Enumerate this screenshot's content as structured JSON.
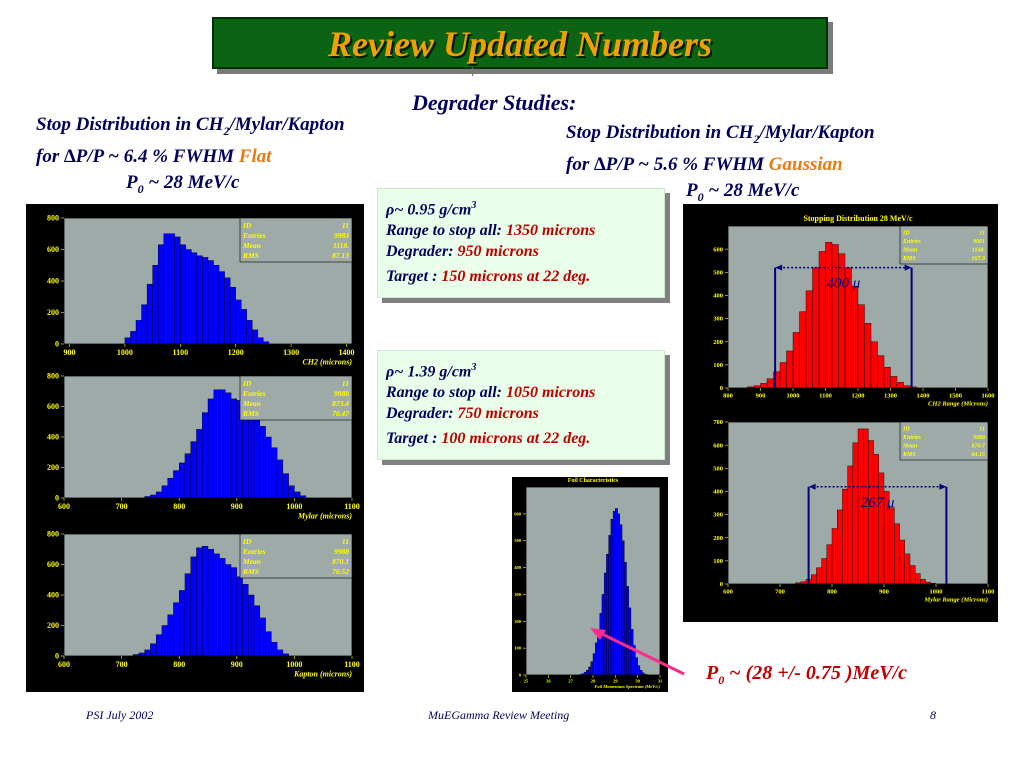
{
  "title": "Review Updated Numbers",
  "slide_glyph": "4",
  "subtitle": "Degrader Studies:",
  "left_caption": {
    "line1_prefix": "Stop Distribution in CH",
    "line1_sub": "2",
    "line1_suffix": "/Mylar/Kapton",
    "line2_prefix": "for  ",
    "line2_delta": "∆",
    "line2_mid": "P/P ~ 6.4 % FWHM",
    "line2_shape": "Flat",
    "line3_p": "P",
    "line3_sub": "0",
    "line3_suffix": " ~ 28 MeV/c"
  },
  "right_caption": {
    "line1_prefix": "Stop Distribution in CH",
    "line1_sub": "2",
    "line1_suffix": "/Mylar/Kapton",
    "line2_prefix": "for  ",
    "line2_delta": "∆",
    "line2_mid": "P/P ~ 5.6 % FWHM",
    "line2_shape": "Gaussian",
    "line3_p": "P",
    "line3_sub": "0",
    "line3_suffix": " ~ 28 MeV/c"
  },
  "box1": {
    "rho_symbol": "ρ",
    "density": "~ 0.95 g/cm",
    "density_sup": "3",
    "range_label": "Range to stop all:",
    "range_value": "1350 microns",
    "degrader_label": "Degrader:",
    "degrader_value": "950  microns",
    "target_label": "Target :",
    "target_value": "150 microns at 22 deg."
  },
  "box2": {
    "rho_symbol": "ρ",
    "density": "~ 1.39 g/cm",
    "density_sup": "3",
    "range_label": "Range to stop all:",
    "range_value": "1050 microns",
    "degrader_label": "Degrader:",
    "degrader_value": "750  microns",
    "target_label": "Target :",
    "target_value": "100 microns at 22 deg."
  },
  "momentum_label": {
    "p": "P",
    "sub": "0",
    "rest": " ~ (28 +/- 0.75 )MeV/c"
  },
  "footer": {
    "left": "PSI July 2002",
    "center": "MuEGamma Review Meeting",
    "right": "8"
  },
  "colors": {
    "title_bg": "#0a6414",
    "title_text": "#f0a000",
    "histo_blue": "#0000ff",
    "histo_red": "#ff0000",
    "plot_bg": "#9eaaa8",
    "axis_text": "#ffff00",
    "info_box_bg": "#eaffea",
    "arrow_magenta": "#ff2c8c"
  },
  "chart_data": [
    {
      "type": "bar",
      "stat_box": {
        "ID": "11",
        "Entries": "9983",
        "Mean": "1118.",
        "RMS": "87.13"
      },
      "xlabel": "CH2   (microns)",
      "xlim": [
        890,
        1410
      ],
      "ylim": [
        0,
        800
      ],
      "x_ticks": [
        "900",
        "1000",
        "1100",
        "1200",
        "1300",
        "1400"
      ],
      "y_ticks": [
        "0",
        "200",
        "400",
        "600",
        "800"
      ],
      "bin_width": 10,
      "x_start": 900,
      "values": [
        0,
        0,
        0,
        0,
        0,
        0,
        0,
        0,
        0,
        0,
        40,
        80,
        150,
        250,
        380,
        500,
        630,
        700,
        700,
        680,
        630,
        600,
        580,
        560,
        550,
        530,
        500,
        460,
        420,
        360,
        280,
        220,
        150,
        90,
        40,
        15
      ]
    },
    {
      "type": "bar",
      "stat_box": {
        "ID": "11",
        "Entries": "9988",
        "Mean": "873.4",
        "RMS": "70.47"
      },
      "xlabel": "Mylar   (microns)",
      "xlim": [
        600,
        1100
      ],
      "ylim": [
        0,
        800
      ],
      "x_ticks": [
        "600",
        "700",
        "800",
        "900",
        "1000",
        "1100"
      ],
      "y_ticks": [
        "0",
        "200",
        "400",
        "600",
        "800"
      ],
      "bin_width": 10,
      "x_start": 600,
      "values": [
        0,
        0,
        0,
        0,
        0,
        0,
        0,
        0,
        0,
        0,
        0,
        0,
        0,
        0,
        10,
        20,
        40,
        80,
        130,
        180,
        230,
        290,
        370,
        450,
        560,
        650,
        710,
        710,
        690,
        650,
        640,
        600,
        580,
        520,
        470,
        400,
        330,
        250,
        160,
        80,
        40,
        15,
        0,
        0,
        0,
        0,
        0,
        0,
        0,
        0
      ]
    },
    {
      "type": "bar",
      "stat_box": {
        "ID": "11",
        "Entries": "9988",
        "Mean": "870.1",
        "RMS": "70.52"
      },
      "xlabel": "Kapton   (microns)",
      "xlim": [
        600,
        1100
      ],
      "ylim": [
        0,
        800
      ],
      "x_ticks": [
        "600",
        "700",
        "800",
        "900",
        "1000",
        "1100"
      ],
      "y_ticks": [
        "0",
        "200",
        "400",
        "600",
        "800"
      ],
      "bin_width": 10,
      "x_start": 600,
      "values": [
        0,
        0,
        0,
        0,
        0,
        0,
        0,
        0,
        0,
        0,
        0,
        0,
        10,
        20,
        40,
        80,
        140,
        200,
        270,
        350,
        430,
        540,
        650,
        710,
        720,
        700,
        670,
        640,
        600,
        580,
        520,
        470,
        400,
        330,
        250,
        160,
        90,
        40,
        15,
        0,
        0,
        0,
        0,
        0,
        0,
        0,
        0,
        0,
        0,
        0
      ]
    },
    {
      "type": "bar",
      "title": "Stopping Distribution 28 MeV/c",
      "stat_box": {
        "ID": "11",
        "Entries": "9981",
        "Mean": "1148.",
        "RMS": "167.9"
      },
      "xlabel": "CH2 Range  (Microns)",
      "xlim": [
        800,
        1600
      ],
      "ylim": [
        0,
        700
      ],
      "x_ticks": [
        "800",
        "900",
        "1000",
        "1100",
        "1200",
        "1300",
        "1400",
        "1500",
        "1600"
      ],
      "y_ticks": [
        "0",
        "100",
        "200",
        "300",
        "400",
        "500",
        "600"
      ],
      "bin_width": 20,
      "x_start": 800,
      "values": [
        0,
        0,
        0,
        5,
        10,
        20,
        40,
        70,
        110,
        160,
        240,
        330,
        420,
        520,
        590,
        630,
        620,
        580,
        520,
        440,
        360,
        280,
        200,
        140,
        90,
        50,
        25,
        10,
        5,
        0,
        0,
        0,
        0,
        0,
        0,
        0,
        0,
        0,
        0,
        0
      ],
      "annotation": "400 μ"
    },
    {
      "type": "bar",
      "stat_box": {
        "ID": "11",
        "Entries": "9988",
        "Mean": "870.7",
        "RMS": "64.15"
      },
      "xlabel": "Mylar Range  (Microns)",
      "xlim": [
        600,
        1100
      ],
      "ylim": [
        0,
        700
      ],
      "x_ticks": [
        "600",
        "700",
        "800",
        "900",
        "1000",
        "1100"
      ],
      "y_ticks": [
        "0",
        "100",
        "200",
        "300",
        "400",
        "500",
        "600",
        "700"
      ],
      "bin_width": 10,
      "x_start": 600,
      "values": [
        0,
        0,
        0,
        0,
        0,
        0,
        0,
        0,
        0,
        0,
        0,
        0,
        0,
        5,
        10,
        20,
        40,
        70,
        110,
        170,
        240,
        320,
        410,
        510,
        610,
        670,
        670,
        620,
        560,
        480,
        400,
        330,
        260,
        190,
        130,
        80,
        45,
        20,
        8,
        3,
        0,
        0,
        0,
        0,
        0,
        0,
        0,
        0,
        0,
        0
      ],
      "annotation": "267 μ"
    },
    {
      "type": "bar",
      "title": "Foil Characteristics",
      "xlabel": "Foil Momentum Spectrum (MeV/c)",
      "x_ticks": [
        "25",
        "26",
        "27",
        "28",
        "29",
        "30",
        "31"
      ],
      "y_ticks": [
        "0",
        "100",
        "200",
        "300",
        "400",
        "500",
        "600"
      ],
      "ylim": [
        0,
        700
      ],
      "xlim": [
        25,
        31
      ],
      "bin_width": 0.1,
      "x_start": 25,
      "values": [
        0,
        0,
        0,
        0,
        0,
        0,
        0,
        0,
        0,
        0,
        0,
        0,
        0,
        0,
        0,
        0,
        0,
        0,
        0,
        0,
        0,
        0,
        0,
        0,
        2,
        5,
        10,
        18,
        30,
        50,
        80,
        120,
        170,
        230,
        300,
        380,
        450,
        520,
        580,
        610,
        620,
        600,
        560,
        500,
        420,
        330,
        250,
        170,
        110,
        65,
        35,
        18,
        8,
        3,
        1,
        0,
        0,
        0,
        0,
        0
      ]
    }
  ]
}
